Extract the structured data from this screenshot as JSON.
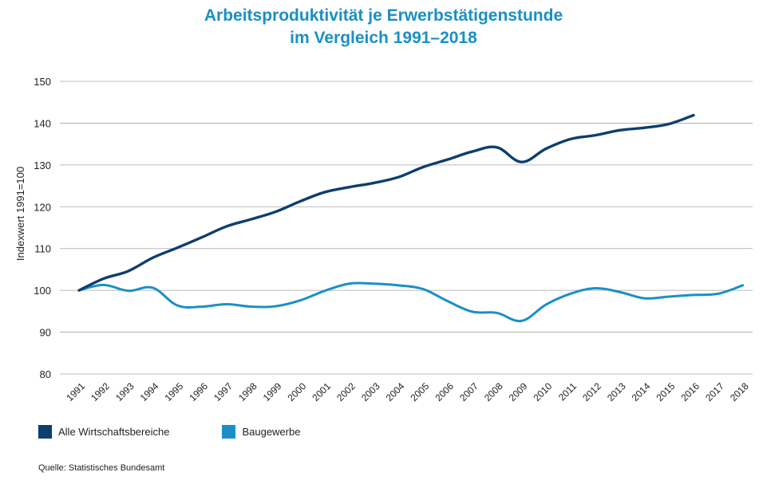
{
  "title_line1": "Arbeitsproduktivität je Erwerbstätigenstunde",
  "title_line2": "im Vergleich 1991–2018",
  "source": "Quelle: Statistisches Bundesamt",
  "colors": {
    "title": "#1a8fc7",
    "series_dark": "#0d3f6e",
    "series_light": "#1a8fc7",
    "grid": "#a6a6a6"
  },
  "chart_data": {
    "type": "line",
    "title": "Arbeitsproduktivität je Erwerbstätigenstunde im Vergleich 1991–2018",
    "xlabel": "",
    "ylabel": "Indexwert 1991=100",
    "ylim": [
      80,
      150
    ],
    "yticks": [
      80,
      90,
      100,
      110,
      120,
      130,
      140,
      150
    ],
    "grid": true,
    "legend_position": "bottom-left",
    "x": [
      "1991",
      "1992",
      "1993",
      "1994",
      "1995",
      "1996",
      "1997",
      "1998",
      "1999",
      "2000",
      "2001",
      "2002",
      "2003",
      "2004",
      "2005",
      "2006",
      "2007",
      "2008",
      "2009",
      "2010",
      "2011",
      "2012",
      "2013",
      "2014",
      "2015",
      "2016",
      "2017",
      "2018"
    ],
    "series": [
      {
        "name": "Alle Wirtschaftsbereiche",
        "values": [
          100,
          102.8,
          104.6,
          107.8,
          110.2,
          112.7,
          115.3,
          117,
          118.8,
          121.3,
          123.5,
          124.7,
          125.7,
          127.1,
          129.5,
          131.3,
          133.2,
          134.2,
          130.7,
          133.9,
          136.2,
          137.1,
          138.3,
          138.9,
          139.8,
          141.9,
          null,
          null
        ],
        "color": "#0d3f6e"
      },
      {
        "name": "Baugewerbe",
        "values": [
          100,
          101.3,
          99.9,
          100.6,
          96.4,
          96.1,
          96.7,
          96.1,
          96.2,
          97.6,
          99.9,
          101.6,
          101.6,
          101.2,
          100.3,
          97.4,
          94.9,
          94.6,
          92.7,
          96.6,
          99.2,
          100.5,
          99.6,
          98.1,
          98.5,
          98.9,
          99.2,
          101.2
        ],
        "color": "#1a8fc7"
      }
    ]
  }
}
